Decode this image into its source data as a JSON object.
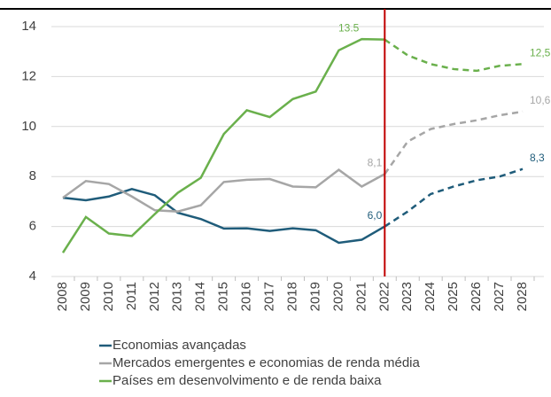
{
  "chart_data": {
    "type": "line",
    "categories": [
      "2008",
      "2009",
      "2010",
      "2011",
      "2012",
      "2013",
      "2014",
      "2015",
      "2016",
      "2017",
      "2018",
      "2019",
      "2020",
      "2021",
      "2022",
      "2023",
      "2024",
      "2025",
      "2026",
      "2027",
      "2028"
    ],
    "forecast_start": "2022",
    "forecast_line_color": "#c00000",
    "ylim": [
      4,
      14
    ],
    "yticks": [
      4,
      6,
      8,
      10,
      12,
      14
    ],
    "grid": true,
    "legend": "bottom",
    "series": [
      {
        "name": "Economias avançadas",
        "color": "#1f5c7a",
        "values": [
          7.15,
          7.05,
          7.2,
          7.5,
          7.25,
          6.55,
          6.3,
          5.92,
          5.93,
          5.82,
          5.93,
          5.85,
          5.35,
          5.47,
          6.0,
          6.6,
          7.3,
          7.6,
          7.85,
          8.0,
          8.3
        ],
        "value_labels": [
          null,
          null,
          null,
          null,
          null,
          null,
          null,
          null,
          null,
          null,
          null,
          null,
          null,
          null,
          "6,0",
          null,
          null,
          null,
          null,
          null,
          "8,3"
        ]
      },
      {
        "name": "Mercados emergentes e economias de renda média",
        "color": "#a6a6a6",
        "values": [
          7.15,
          7.82,
          7.7,
          7.2,
          6.65,
          6.6,
          6.85,
          7.78,
          7.87,
          7.9,
          7.6,
          7.57,
          8.27,
          7.6,
          8.1,
          9.4,
          9.9,
          10.1,
          10.25,
          10.45,
          10.6
        ],
        "value_labels": [
          null,
          null,
          null,
          null,
          null,
          null,
          null,
          null,
          null,
          null,
          null,
          null,
          null,
          null,
          "8,1",
          null,
          null,
          null,
          null,
          null,
          "10,6"
        ]
      },
      {
        "name": "Países em desenvolvimento e de renda baixa",
        "color": "#6ab04c",
        "values": [
          4.95,
          6.38,
          5.72,
          5.62,
          6.5,
          7.35,
          7.95,
          9.7,
          10.65,
          10.38,
          11.1,
          11.4,
          13.05,
          13.5,
          13.48,
          12.85,
          12.5,
          12.3,
          12.23,
          12.43,
          12.5
        ],
        "value_labels": [
          null,
          null,
          null,
          null,
          null,
          null,
          null,
          null,
          null,
          null,
          null,
          null,
          null,
          13.5,
          null,
          null,
          null,
          null,
          null,
          null,
          "12,5"
        ]
      }
    ]
  }
}
